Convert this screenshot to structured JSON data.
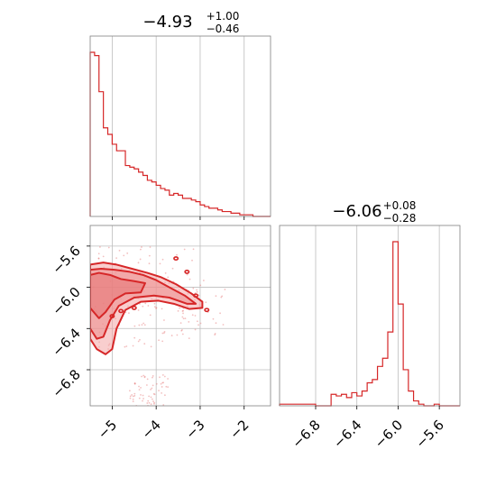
{
  "chart_data": [
    {
      "type": "histogram",
      "panel": "param1-marginal",
      "title_value": "−4.93",
      "title_upper": "+1.00",
      "title_lower": "−0.46",
      "xlim": [
        -5.5,
        -1.4
      ],
      "grid": true,
      "color": "#d62728",
      "x_tick_values": [
        -5,
        -4,
        -3,
        -2
      ],
      "bin_edges": [
        -5.5,
        -5.4,
        -5.3,
        -5.2,
        -5.1,
        -5.0,
        -4.9,
        -4.8,
        -4.7,
        -4.6,
        -4.5,
        -4.4,
        -4.3,
        -4.2,
        -4.1,
        -4.0,
        -3.9,
        -3.8,
        -3.7,
        -3.6,
        -3.5,
        -3.4,
        -3.3,
        -3.2,
        -3.1,
        -3.0,
        -2.9,
        -2.8,
        -2.7,
        -2.6,
        -2.5,
        -2.4,
        -2.3,
        -2.2,
        -2.1,
        -2.0,
        -1.9,
        -1.8,
        -1.7,
        -1.6,
        -1.5,
        -1.4
      ],
      "counts": [
        100,
        98,
        76,
        54,
        50,
        44,
        40,
        40,
        31,
        30,
        29,
        27,
        25,
        22,
        21,
        19,
        17,
        16,
        13,
        14,
        13,
        11,
        11,
        10,
        9,
        7,
        6,
        5,
        5,
        4,
        3,
        3,
        2,
        2,
        1,
        1,
        1,
        0,
        0,
        0,
        0
      ]
    },
    {
      "type": "scatter_contour",
      "panel": "param1-vs-param2",
      "xlim": [
        -5.5,
        -1.4
      ],
      "ylim": [
        -7.15,
        -5.4
      ],
      "grid": true,
      "color": "#d62728",
      "x_tick_values": [
        -5,
        -4,
        -3,
        -2
      ],
      "x_tick_labels": [
        "−5",
        "−4",
        "−3",
        "−2"
      ],
      "y_tick_values": [
        -5.6,
        -6.0,
        -6.4,
        -6.8
      ],
      "y_tick_labels": [
        "−5.6",
        "−6.0",
        "−6.4",
        "−6.8"
      ],
      "contour_levels": [
        {
          "level": 0.39,
          "path": [
            [
              -5.5,
              -5.88
            ],
            [
              -5.3,
              -5.86
            ],
            [
              -5.05,
              -5.88
            ],
            [
              -4.8,
              -5.92
            ],
            [
              -4.5,
              -5.94
            ],
            [
              -4.25,
              -5.96
            ],
            [
              -4.35,
              -6.05
            ],
            [
              -4.7,
              -6.06
            ],
            [
              -4.95,
              -6.12
            ],
            [
              -5.15,
              -6.24
            ],
            [
              -5.3,
              -6.3
            ],
            [
              -5.5,
              -6.2
            ]
          ]
        },
        {
          "level": 0.86,
          "path": [
            [
              -5.5,
              -5.83
            ],
            [
              -5.25,
              -5.82
            ],
            [
              -4.95,
              -5.83
            ],
            [
              -4.6,
              -5.85
            ],
            [
              -4.3,
              -5.88
            ],
            [
              -4.0,
              -5.93
            ],
            [
              -3.7,
              -6.0
            ],
            [
              -3.35,
              -6.08
            ],
            [
              -3.1,
              -6.16
            ],
            [
              -3.3,
              -6.16
            ],
            [
              -3.7,
              -6.1
            ],
            [
              -4.05,
              -6.08
            ],
            [
              -4.5,
              -6.1
            ],
            [
              -4.85,
              -6.18
            ],
            [
              -5.05,
              -6.32
            ],
            [
              -5.2,
              -6.48
            ],
            [
              -5.35,
              -6.5
            ],
            [
              -5.5,
              -6.4
            ]
          ]
        },
        {
          "level": 0.99,
          "path": [
            [
              -5.5,
              -5.78
            ],
            [
              -5.2,
              -5.76
            ],
            [
              -4.9,
              -5.78
            ],
            [
              -4.55,
              -5.82
            ],
            [
              -4.2,
              -5.86
            ],
            [
              -3.9,
              -5.9
            ],
            [
              -3.55,
              -5.97
            ],
            [
              -3.2,
              -6.06
            ],
            [
              -2.95,
              -6.14
            ],
            [
              -2.95,
              -6.2
            ],
            [
              -3.25,
              -6.21
            ],
            [
              -3.6,
              -6.16
            ],
            [
              -3.95,
              -6.13
            ],
            [
              -4.35,
              -6.14
            ],
            [
              -4.7,
              -6.22
            ],
            [
              -4.9,
              -6.4
            ],
            [
              -5.0,
              -6.6
            ],
            [
              -5.15,
              -6.65
            ],
            [
              -5.35,
              -6.6
            ],
            [
              -5.5,
              -6.5
            ]
          ]
        }
      ],
      "contour_islands": [
        {
          "x": -3.55,
          "y": -5.72
        },
        {
          "x": -4.5,
          "y": -6.2
        },
        {
          "x": -4.8,
          "y": -6.23
        },
        {
          "x": -5.0,
          "y": -6.28
        },
        {
          "x": -3.3,
          "y": -5.85
        },
        {
          "x": -3.1,
          "y": -6.08
        },
        {
          "x": -2.85,
          "y": -6.22
        }
      ],
      "scatter_regions": [
        {
          "x": [
            -5.5,
            -3.0
          ],
          "y": [
            -6.6,
            -5.6
          ],
          "n": 120
        },
        {
          "x": [
            -4.6,
            -3.7
          ],
          "y": [
            -7.15,
            -6.85
          ],
          "n": 60
        },
        {
          "x": [
            -3.5,
            -2.4
          ],
          "y": [
            -6.5,
            -5.9
          ],
          "n": 40
        }
      ]
    },
    {
      "type": "histogram",
      "panel": "param2-marginal",
      "title_value": "−6.06",
      "title_upper": "+0.08",
      "title_lower": "−0.28",
      "xlim": [
        -7.15,
        -5.4
      ],
      "grid": true,
      "color": "#d62728",
      "x_tick_values": [
        -6.8,
        -6.4,
        -6.0,
        -5.6
      ],
      "x_tick_labels": [
        "−6.8",
        "−6.4",
        "−6.0",
        "−5.6"
      ],
      "bin_edges": [
        -7.15,
        -7.1,
        -7.05,
        -7.0,
        -6.95,
        -6.9,
        -6.85,
        -6.8,
        -6.75,
        -6.7,
        -6.65,
        -6.6,
        -6.55,
        -6.5,
        -6.45,
        -6.4,
        -6.35,
        -6.3,
        -6.25,
        -6.2,
        -6.15,
        -6.1,
        -6.05,
        -6.0,
        -5.95,
        -5.9,
        -5.85,
        -5.8,
        -5.75,
        -5.7,
        -5.65,
        -5.6,
        -5.55,
        -5.5,
        -5.45,
        -5.4
      ],
      "counts": [
        1,
        1,
        1,
        1,
        1,
        1,
        1,
        0,
        0,
        0,
        7,
        6,
        7,
        5,
        8,
        6,
        9,
        14,
        16,
        24,
        29,
        45,
        100,
        62,
        22,
        9,
        3,
        1,
        0,
        0,
        1,
        0,
        0,
        0,
        0
      ]
    }
  ]
}
